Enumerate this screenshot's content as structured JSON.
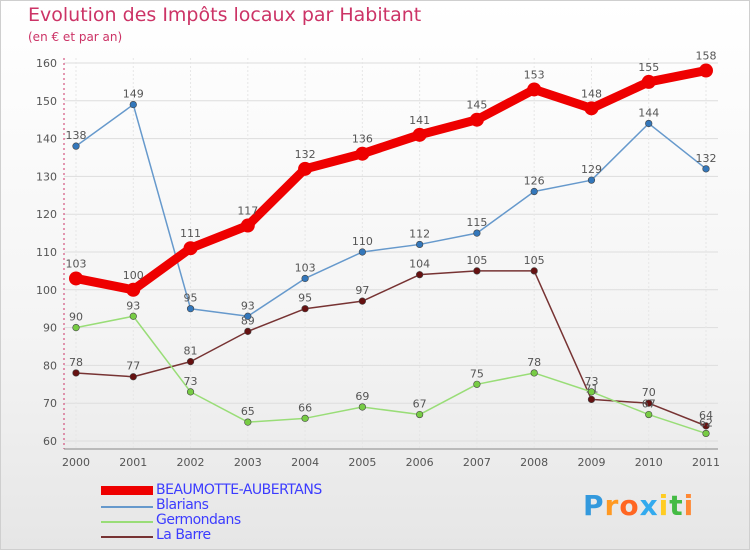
{
  "chart_data": {
    "type": "line",
    "title": "Evolution des Impôts locaux par Habitant",
    "subtitle": "(en € et par an)",
    "xlabel": "",
    "ylabel": "",
    "categories": [
      "2000",
      "2001",
      "2002",
      "2003",
      "2004",
      "2005",
      "2006",
      "2007",
      "2008",
      "2009",
      "2010",
      "2011"
    ],
    "ylim": [
      60,
      160
    ],
    "yticks": [
      60,
      70,
      80,
      90,
      100,
      110,
      120,
      130,
      140,
      150,
      160
    ],
    "grid": true,
    "legend_position": "bottom-left",
    "series": [
      {
        "name": "BEAUMOTTE-AUBERTANS",
        "values": [
          103,
          100,
          111,
          117,
          132,
          136,
          141,
          145,
          153,
          148,
          155,
          158
        ],
        "color": "#ee0000",
        "marker": "#ee0000"
      },
      {
        "name": "Blarians",
        "values": [
          138,
          149,
          95,
          93,
          103,
          110,
          112,
          115,
          126,
          129,
          144,
          132
        ],
        "color": "#6699cc",
        "marker": "#3377bb"
      },
      {
        "name": "Germondans",
        "values": [
          90,
          93,
          73,
          65,
          66,
          69,
          67,
          75,
          78,
          73,
          67,
          62
        ],
        "color": "#99dd77",
        "marker": "#77cc44"
      },
      {
        "name": "La Barre",
        "values": [
          78,
          77,
          81,
          89,
          95,
          97,
          104,
          105,
          105,
          71,
          70,
          64
        ],
        "color": "#773333",
        "marker": "#661111"
      }
    ]
  },
  "logo": {
    "letters": [
      "P",
      "r",
      "o",
      "x",
      "i",
      "t",
      "i"
    ],
    "colors": [
      "#3399dd",
      "#ff9922",
      "#ff6622",
      "#33aaee",
      "#ffcc22",
      "#44bb44",
      "#ff8833"
    ]
  }
}
